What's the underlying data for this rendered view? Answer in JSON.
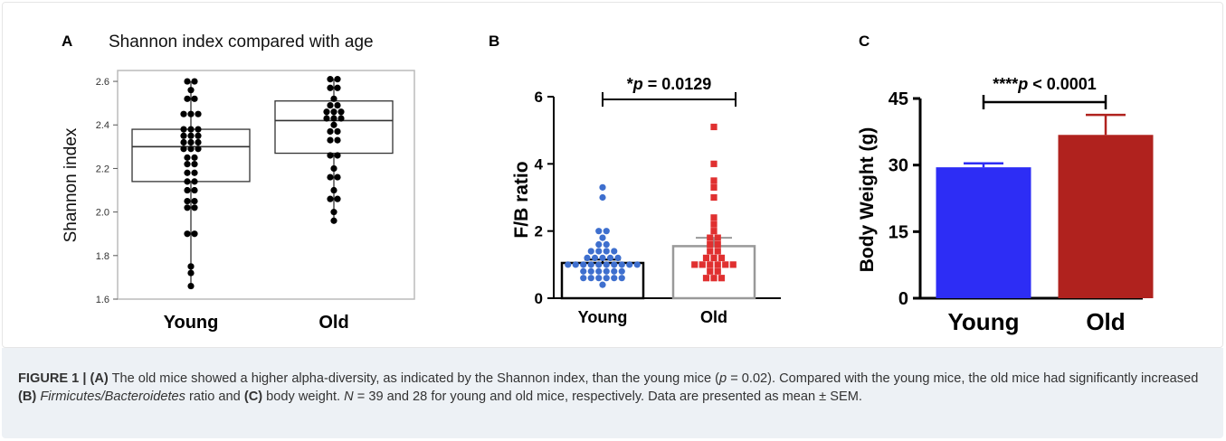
{
  "figure": {
    "caption": {
      "label": "FIGURE 1 |",
      "segments": [
        {
          "text": "(A)",
          "bold": true,
          "italic": false
        },
        {
          "text": " The old mice showed a higher alpha-diversity, as indicated by the Shannon index, than the young mice (",
          "bold": false,
          "italic": false
        },
        {
          "text": "p",
          "bold": false,
          "italic": true
        },
        {
          "text": " = 0.02). Compared with the young mice, the old mice had significantly increased ",
          "bold": false,
          "italic": false
        },
        {
          "text": "(B)",
          "bold": true,
          "italic": false
        },
        {
          "text": " ",
          "bold": false,
          "italic": false
        },
        {
          "text": "Firmicutes/Bacteroidetes",
          "bold": false,
          "italic": true
        },
        {
          "text": " ratio and ",
          "bold": false,
          "italic": false
        },
        {
          "text": "(C)",
          "bold": true,
          "italic": false
        },
        {
          "text": " body weight. ",
          "bold": false,
          "italic": false
        },
        {
          "text": "N",
          "bold": false,
          "italic": true
        },
        {
          "text": " = 39 and 28 for young and old mice, respectively. Data are presented as mean ± SEM.",
          "bold": false,
          "italic": false
        }
      ]
    }
  },
  "chart_data": [
    {
      "panel": "A",
      "type": "boxplot",
      "title": "Shannon index compared with age",
      "ylabel": "Shannon index",
      "xlabel": "",
      "categories": [
        "Young",
        "Old"
      ],
      "ylim": [
        1.6,
        2.65
      ],
      "yticks": [
        "1.6",
        "1.8",
        "2.0",
        "2.2",
        "2.4",
        "2.6"
      ],
      "boxes": [
        {
          "name": "Young",
          "min": 1.66,
          "q1": 2.14,
          "median": 2.3,
          "q3": 2.38,
          "max": 2.6
        },
        {
          "name": "Old",
          "min": 1.96,
          "q1": 2.27,
          "median": 2.42,
          "q3": 2.51,
          "max": 2.61
        }
      ],
      "points": [
        {
          "category": "Young",
          "values": [
            2.6,
            2.59,
            2.56,
            2.52,
            2.5,
            2.45,
            2.44,
            2.44,
            2.38,
            2.37,
            2.36,
            2.35,
            2.34,
            2.33,
            2.32,
            2.31,
            2.3,
            2.29,
            2.28,
            2.27,
            2.25,
            2.24,
            2.22,
            2.2,
            2.18,
            2.16,
            2.14,
            2.12,
            2.1,
            2.08,
            2.05,
            2.04,
            2.02,
            2.01,
            1.9,
            1.89,
            1.75,
            1.72,
            1.66
          ]
        },
        {
          "category": "Old",
          "values": [
            2.61,
            2.6,
            2.57,
            2.55,
            2.52,
            2.49,
            2.47,
            2.46,
            2.45,
            2.44,
            2.43,
            2.42,
            2.41,
            2.4,
            2.37,
            2.36,
            2.33,
            2.31,
            2.26,
            2.24,
            2.2,
            2.16,
            2.14,
            2.1,
            2.06,
            2.04,
            2.0,
            1.96
          ]
        }
      ],
      "colors": {
        "points": "#000000",
        "box": "#333333"
      }
    },
    {
      "panel": "B",
      "type": "bar",
      "title": "",
      "ylabel": "F/B ratio",
      "xlabel": "",
      "categories": [
        "Young",
        "Old"
      ],
      "ylim": [
        0,
        6
      ],
      "yticks": [
        "0",
        "2",
        "4",
        "6"
      ],
      "values": [
        1.05,
        1.55
      ],
      "errors": [
        0.1,
        0.25
      ],
      "annotation": "*p = 0.0129",
      "points": [
        {
          "category": "Young",
          "values": [
            3.3,
            3.0,
            2.0,
            2.0,
            1.8,
            1.6,
            1.5,
            1.4,
            1.4,
            1.3,
            1.3,
            1.2,
            1.2,
            1.1,
            1.1,
            1.1,
            1.0,
            1.0,
            1.0,
            1.0,
            0.95,
            0.9,
            0.9,
            0.9,
            0.9,
            0.85,
            0.8,
            0.8,
            0.8,
            0.7,
            0.7,
            0.7,
            0.6,
            0.6,
            0.5,
            0.5,
            0.5,
            0.45,
            0.4
          ]
        },
        {
          "category": "Old",
          "values": [
            5.1,
            4.0,
            3.5,
            3.3,
            3.0,
            2.4,
            2.2,
            2.0,
            1.8,
            1.7,
            1.6,
            1.5,
            1.4,
            1.3,
            1.2,
            1.2,
            1.1,
            1.0,
            1.0,
            0.9,
            0.9,
            0.9,
            0.9,
            0.8,
            0.7,
            0.6,
            0.5,
            0.5
          ]
        }
      ],
      "colors": {
        "Young": "#3e6fce",
        "Old": "#e03030",
        "bar_edge_young": "#000000",
        "bar_edge_old": "#999999"
      }
    },
    {
      "panel": "C",
      "type": "bar",
      "title": "",
      "ylabel": "Body Weight (g)",
      "xlabel": "",
      "categories": [
        "Young",
        "Old"
      ],
      "ylim": [
        0,
        45
      ],
      "yticks": [
        "0",
        "15",
        "30",
        "45"
      ],
      "values": [
        29.5,
        36.8
      ],
      "errors": [
        0.9,
        4.5
      ],
      "annotation": "****p < 0.0001",
      "colors": {
        "Young": "#2d2df5",
        "Old": "#b0221e"
      }
    }
  ]
}
